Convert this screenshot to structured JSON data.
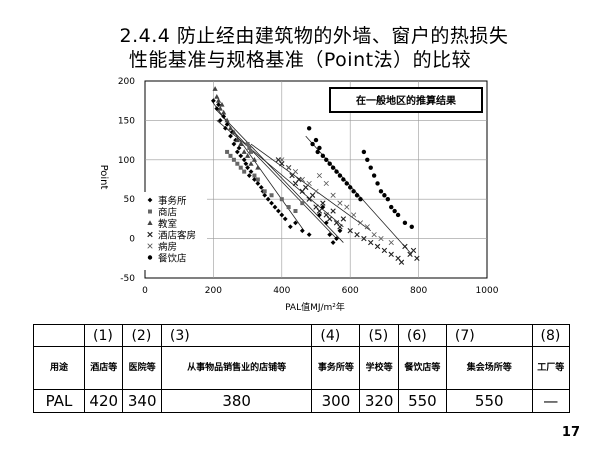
{
  "slide": {
    "title_line1": "2.4.4 防止经由建筑物的外墙、窗户的热损失",
    "title_line2": "性能基准与规格基准（Point法）的比较",
    "page_number": "17"
  },
  "chart_data": {
    "type": "scatter",
    "annotation": "在一般地区的推算结果",
    "xlabel": "PAL值MJ/m²年",
    "ylabel": "Point",
    "xlim": [
      0,
      1000
    ],
    "ylim": [
      -50,
      200
    ],
    "xticks": [
      0,
      200,
      400,
      600,
      800,
      1000
    ],
    "yticks": [
      -50,
      0,
      50,
      100,
      150,
      200
    ],
    "legend_position": "lower-left",
    "series": [
      {
        "name": "事务所",
        "marker": "diamond",
        "color": "#000000",
        "points": [
          [
            200,
            175
          ],
          [
            210,
            165
          ],
          [
            215,
            170
          ],
          [
            220,
            150
          ],
          [
            230,
            155
          ],
          [
            235,
            140
          ],
          [
            240,
            145
          ],
          [
            250,
            130
          ],
          [
            255,
            135
          ],
          [
            260,
            120
          ],
          [
            265,
            125
          ],
          [
            270,
            110
          ],
          [
            275,
            115
          ],
          [
            280,
            105
          ],
          [
            290,
            100
          ],
          [
            295,
            95
          ],
          [
            300,
            90
          ],
          [
            305,
            80
          ],
          [
            310,
            85
          ],
          [
            320,
            75
          ],
          [
            330,
            70
          ],
          [
            340,
            65
          ],
          [
            345,
            60
          ],
          [
            350,
            55
          ],
          [
            360,
            50
          ],
          [
            370,
            45
          ],
          [
            380,
            40
          ],
          [
            390,
            35
          ],
          [
            400,
            30
          ],
          [
            410,
            25
          ],
          [
            425,
            15
          ],
          [
            440,
            20
          ],
          [
            460,
            10
          ],
          [
            480,
            5
          ],
          [
            510,
            30
          ],
          [
            520,
            40
          ],
          [
            530,
            20
          ],
          [
            540,
            5
          ],
          [
            550,
            -5
          ],
          [
            560,
            0
          ],
          [
            570,
            10
          ]
        ]
      },
      {
        "name": "商店",
        "marker": "square",
        "color": "#666666",
        "points": [
          [
            240,
            110
          ],
          [
            250,
            105
          ],
          [
            260,
            100
          ],
          [
            270,
            95
          ],
          [
            280,
            90
          ],
          [
            290,
            85
          ],
          [
            300,
            120
          ],
          [
            305,
            115
          ],
          [
            310,
            110
          ],
          [
            320,
            80
          ],
          [
            330,
            75
          ],
          [
            350,
            60
          ],
          [
            370,
            55
          ],
          [
            400,
            50
          ],
          [
            420,
            40
          ],
          [
            440,
            35
          ],
          [
            460,
            45
          ]
        ]
      },
      {
        "name": "教室",
        "marker": "triangle",
        "color": "#444444",
        "points": [
          [
            205,
            190
          ],
          [
            210,
            180
          ],
          [
            215,
            175
          ],
          [
            220,
            165
          ],
          [
            225,
            170
          ],
          [
            230,
            160
          ],
          [
            240,
            150
          ],
          [
            250,
            140
          ],
          [
            260,
            135
          ],
          [
            270,
            125
          ],
          [
            280,
            120
          ],
          [
            290,
            110
          ],
          [
            300,
            105
          ],
          [
            310,
            95
          ],
          [
            320,
            100
          ],
          [
            330,
            90
          ]
        ]
      },
      {
        "name": "酒店客房",
        "marker": "x",
        "color": "#222222",
        "points": [
          [
            390,
            100
          ],
          [
            400,
            95
          ],
          [
            420,
            90
          ],
          [
            430,
            80
          ],
          [
            440,
            70
          ],
          [
            450,
            75
          ],
          [
            460,
            60
          ],
          [
            470,
            65
          ],
          [
            480,
            50
          ],
          [
            490,
            55
          ],
          [
            500,
            40
          ],
          [
            510,
            35
          ],
          [
            520,
            45
          ],
          [
            530,
            30
          ],
          [
            540,
            25
          ],
          [
            550,
            35
          ],
          [
            560,
            20
          ],
          [
            570,
            15
          ],
          [
            580,
            25
          ],
          [
            600,
            10
          ],
          [
            620,
            5
          ],
          [
            640,
            0
          ],
          [
            660,
            -5
          ],
          [
            680,
            -10
          ],
          [
            700,
            -15
          ],
          [
            720,
            -20
          ],
          [
            740,
            -25
          ],
          [
            750,
            -30
          ],
          [
            760,
            -10
          ],
          [
            775,
            -20
          ],
          [
            785,
            -15
          ],
          [
            795,
            -25
          ]
        ]
      },
      {
        "name": "病房",
        "marker": "x-thin",
        "color": "#555555",
        "points": [
          [
            400,
            100
          ],
          [
            420,
            90
          ],
          [
            440,
            85
          ],
          [
            460,
            75
          ],
          [
            480,
            70
          ],
          [
            500,
            60
          ],
          [
            510,
            80
          ],
          [
            530,
            70
          ],
          [
            550,
            55
          ],
          [
            570,
            45
          ],
          [
            590,
            40
          ],
          [
            610,
            30
          ],
          [
            630,
            20
          ],
          [
            650,
            15
          ],
          [
            670,
            5
          ],
          [
            690,
            0
          ],
          [
            720,
            -5
          ]
        ]
      },
      {
        "name": "餐饮店",
        "marker": "circle",
        "color": "#000000",
        "points": [
          [
            480,
            140
          ],
          [
            490,
            120
          ],
          [
            500,
            125
          ],
          [
            505,
            110
          ],
          [
            510,
            115
          ],
          [
            520,
            105
          ],
          [
            530,
            100
          ],
          [
            540,
            95
          ],
          [
            550,
            90
          ],
          [
            560,
            85
          ],
          [
            570,
            80
          ],
          [
            580,
            75
          ],
          [
            590,
            70
          ],
          [
            600,
            65
          ],
          [
            610,
            60
          ],
          [
            620,
            55
          ],
          [
            630,
            50
          ],
          [
            640,
            110
          ],
          [
            650,
            100
          ],
          [
            660,
            90
          ],
          [
            670,
            80
          ],
          [
            680,
            70
          ],
          [
            690,
            60
          ],
          [
            700,
            55
          ],
          [
            710,
            50
          ],
          [
            720,
            40
          ],
          [
            730,
            35
          ],
          [
            740,
            30
          ],
          [
            760,
            20
          ],
          [
            780,
            15
          ]
        ]
      }
    ],
    "trend_lines": [
      {
        "points": [
          [
            195,
            175
          ],
          [
            465,
            10
          ]
        ]
      },
      {
        "points": [
          [
            205,
            165
          ],
          [
            580,
            -5
          ]
        ]
      },
      {
        "points": [
          [
            210,
            150
          ],
          [
            580,
            15
          ]
        ]
      },
      {
        "points": [
          [
            250,
            140
          ],
          [
            560,
            0
          ]
        ]
      },
      {
        "points": [
          [
            310,
            120
          ],
          [
            660,
            10
          ]
        ]
      },
      {
        "points": [
          [
            470,
            130
          ],
          [
            780,
            -20
          ]
        ]
      }
    ]
  },
  "table": {
    "numbers": [
      "(1)",
      "(2)",
      "(3)",
      "(4)",
      "(5)",
      "(6)",
      "(7)",
      "(8)"
    ],
    "usage_header": "用途",
    "usages": [
      "酒店等",
      "医院等",
      "从事物品销售业的店铺等",
      "事务所等",
      "学校等",
      "餐饮店等",
      "集会场所等",
      "工厂等"
    ],
    "pal_header": "PAL",
    "pal_values": [
      "420",
      "340",
      "380",
      "300",
      "320",
      "550",
      "550",
      "—"
    ]
  }
}
